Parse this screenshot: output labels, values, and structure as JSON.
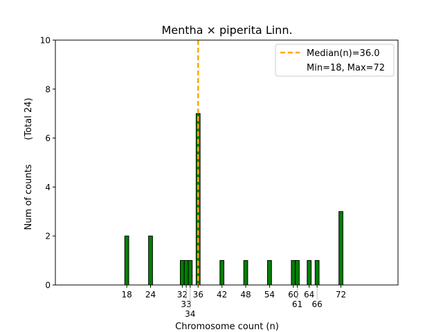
{
  "chart_data": {
    "type": "bar",
    "title": "Mentha × piperita Linn.",
    "xlabel": "Chromosome count (n)",
    "ylabel": "Num of counts",
    "ylabel2": "(Total 24)",
    "x": [
      18,
      24,
      32,
      33,
      34,
      36,
      42,
      48,
      54,
      60,
      61,
      64,
      66,
      72
    ],
    "values": [
      2,
      2,
      1,
      1,
      1,
      7,
      1,
      1,
      1,
      1,
      1,
      1,
      1,
      3
    ],
    "xtick_labels": [
      "18",
      "24",
      "32",
      "33",
      "34",
      "36",
      "42",
      "48",
      "54",
      "60",
      "61",
      "64",
      "66",
      "72"
    ],
    "yticks": [
      "0",
      "2",
      "4",
      "6",
      "8",
      "10"
    ],
    "xlim": [
      0,
      86.4
    ],
    "ylim": [
      0,
      10
    ],
    "bar_color": "#008000",
    "median": 36.0,
    "median_color": "#FFA500",
    "legend": {
      "position": "top-right",
      "entries": [
        "Median(n)=36.0",
        "Min=18, Max=72"
      ]
    }
  }
}
